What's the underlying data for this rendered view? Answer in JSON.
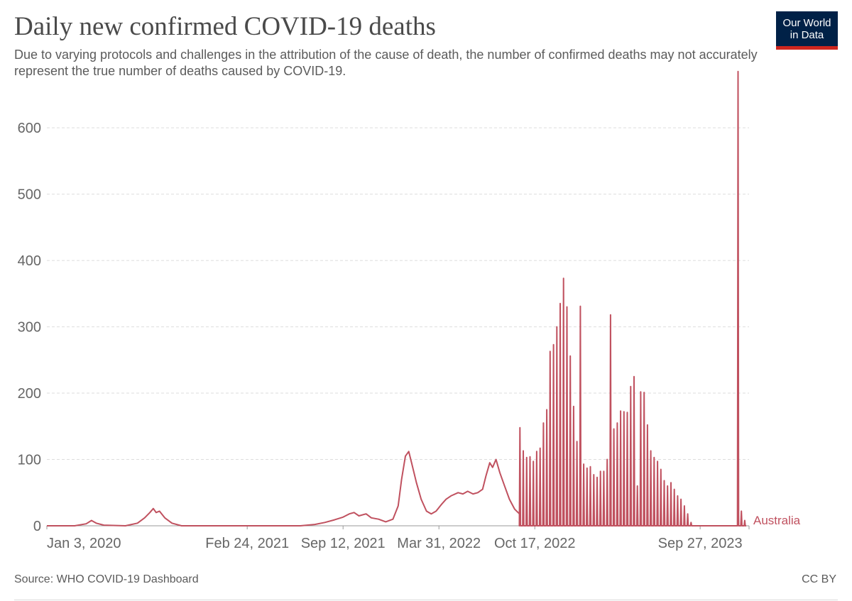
{
  "header": {
    "title": "Daily new confirmed COVID-19 deaths",
    "subtitle": "Due to varying protocols and challenges in the attribution of the cause of death, the number of confirmed deaths may not accurately represent the true number of deaths caused by COVID-19.",
    "logo_line1": "Our World",
    "logo_line2": "in Data"
  },
  "footer": {
    "source": "Source: WHO COVID-19 Dashboard",
    "license": "CC BY"
  },
  "colors": {
    "series": "#c0515f",
    "grid": "#dddddd",
    "axis": "#999999",
    "logo_bg": "#002147",
    "logo_accent": "#ce261e"
  },
  "chart_data": {
    "type": "line",
    "title": "Daily new confirmed COVID-19 deaths",
    "xlabel": "",
    "ylabel": "",
    "xlim": [
      "2020-01-03",
      "2024-01-07"
    ],
    "ylim": [
      0,
      690
    ],
    "yticks": [
      0,
      100,
      200,
      300,
      400,
      500,
      600
    ],
    "xticks": [
      {
        "date": "2020-01-03",
        "label": "Jan 3, 2020"
      },
      {
        "date": "2021-02-24",
        "label": "Feb 24, 2021"
      },
      {
        "date": "2021-09-12",
        "label": "Sep 12, 2021"
      },
      {
        "date": "2022-03-31",
        "label": "Mar 31, 2022"
      },
      {
        "date": "2022-10-17",
        "label": "Oct 17, 2022"
      },
      {
        "date": "2023-09-27",
        "label": "Sep 27, 2023"
      }
    ],
    "grid": true,
    "legend": "inline-right",
    "series": [
      {
        "name": "Australia",
        "points": [
          [
            "2020-01-03",
            0
          ],
          [
            "2020-03-01",
            0
          ],
          [
            "2020-03-25",
            3
          ],
          [
            "2020-04-05",
            8
          ],
          [
            "2020-04-15",
            4
          ],
          [
            "2020-05-01",
            1
          ],
          [
            "2020-06-15",
            0
          ],
          [
            "2020-07-10",
            4
          ],
          [
            "2020-07-25",
            12
          ],
          [
            "2020-08-05",
            20
          ],
          [
            "2020-08-12",
            26
          ],
          [
            "2020-08-18",
            20
          ],
          [
            "2020-08-25",
            22
          ],
          [
            "2020-09-05",
            12
          ],
          [
            "2020-09-20",
            4
          ],
          [
            "2020-10-10",
            0
          ],
          [
            "2021-06-15",
            0
          ],
          [
            "2021-07-15",
            2
          ],
          [
            "2021-08-05",
            5
          ],
          [
            "2021-08-25",
            9
          ],
          [
            "2021-09-12",
            13
          ],
          [
            "2021-09-25",
            18
          ],
          [
            "2021-10-05",
            20
          ],
          [
            "2021-10-15",
            15
          ],
          [
            "2021-10-30",
            18
          ],
          [
            "2021-11-10",
            12
          ],
          [
            "2021-11-25",
            10
          ],
          [
            "2021-12-10",
            6
          ],
          [
            "2021-12-25",
            10
          ],
          [
            "2022-01-05",
            30
          ],
          [
            "2022-01-12",
            70
          ],
          [
            "2022-01-20",
            105
          ],
          [
            "2022-01-27",
            112
          ],
          [
            "2022-02-02",
            95
          ],
          [
            "2022-02-12",
            65
          ],
          [
            "2022-02-22",
            40
          ],
          [
            "2022-03-05",
            22
          ],
          [
            "2022-03-15",
            18
          ],
          [
            "2022-03-25",
            22
          ],
          [
            "2022-04-05",
            32
          ],
          [
            "2022-04-15",
            40
          ],
          [
            "2022-04-25",
            45
          ],
          [
            "2022-05-10",
            50
          ],
          [
            "2022-05-20",
            48
          ],
          [
            "2022-05-30",
            52
          ],
          [
            "2022-06-10",
            48
          ],
          [
            "2022-06-20",
            50
          ],
          [
            "2022-06-30",
            55
          ],
          [
            "2022-07-07",
            75
          ],
          [
            "2022-07-15",
            95
          ],
          [
            "2022-07-21",
            88
          ],
          [
            "2022-07-28",
            100
          ],
          [
            "2022-08-05",
            80
          ],
          [
            "2022-08-15",
            60
          ],
          [
            "2022-08-25",
            40
          ],
          [
            "2022-09-05",
            25
          ],
          [
            "2022-09-15",
            18
          ]
        ],
        "weekly_spikes": [
          [
            "2022-09-16",
            148
          ],
          [
            "2022-09-23",
            113
          ],
          [
            "2022-09-30",
            103
          ],
          [
            "2022-10-07",
            104
          ],
          [
            "2022-10-14",
            97
          ],
          [
            "2022-10-21",
            112
          ],
          [
            "2022-10-28",
            117
          ],
          [
            "2022-11-04",
            155
          ],
          [
            "2022-11-11",
            175
          ],
          [
            "2022-11-18",
            263
          ],
          [
            "2022-11-25",
            273
          ],
          [
            "2022-12-02",
            300
          ],
          [
            "2022-12-09",
            335
          ],
          [
            "2022-12-16",
            373
          ],
          [
            "2022-12-23",
            330
          ],
          [
            "2022-12-30",
            256
          ],
          [
            "2023-01-06",
            180
          ],
          [
            "2023-01-13",
            127
          ],
          [
            "2023-01-20",
            331
          ],
          [
            "2023-01-27",
            93
          ],
          [
            "2023-02-03",
            87
          ],
          [
            "2023-02-10",
            89
          ],
          [
            "2023-02-17",
            77
          ],
          [
            "2023-02-24",
            73
          ],
          [
            "2023-03-03",
            82
          ],
          [
            "2023-03-10",
            82
          ],
          [
            "2023-03-17",
            100
          ],
          [
            "2023-03-24",
            318
          ],
          [
            "2023-03-31",
            146
          ],
          [
            "2023-04-07",
            155
          ],
          [
            "2023-04-14",
            173
          ],
          [
            "2023-04-21",
            172
          ],
          [
            "2023-04-28",
            171
          ],
          [
            "2023-05-05",
            210
          ],
          [
            "2023-05-12",
            225
          ],
          [
            "2023-05-19",
            60
          ],
          [
            "2023-05-26",
            202
          ],
          [
            "2023-06-02",
            201
          ],
          [
            "2023-06-09",
            152
          ],
          [
            "2023-06-16",
            113
          ],
          [
            "2023-06-23",
            103
          ],
          [
            "2023-06-30",
            97
          ],
          [
            "2023-07-07",
            85
          ],
          [
            "2023-07-14",
            68
          ],
          [
            "2023-07-21",
            60
          ],
          [
            "2023-07-28",
            65
          ],
          [
            "2023-08-04",
            55
          ],
          [
            "2023-08-11",
            45
          ],
          [
            "2023-08-18",
            40
          ],
          [
            "2023-08-25",
            30
          ],
          [
            "2023-09-01",
            18
          ],
          [
            "2023-09-08",
            5
          ],
          [
            "2023-12-15",
            685
          ],
          [
            "2023-12-22",
            22
          ],
          [
            "2023-12-29",
            8
          ]
        ]
      }
    ]
  }
}
